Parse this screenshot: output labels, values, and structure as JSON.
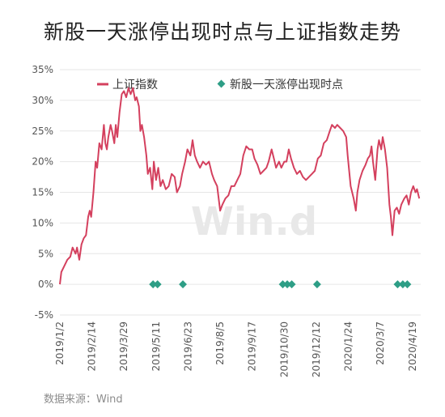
{
  "title": "新股一天涨停出现时点与上证指数走势",
  "source": "数据来源：Wind",
  "watermark": "Win.d",
  "colors": {
    "line": "#d4405e",
    "marker": "#2e9e86",
    "grid": "#e6e6e6"
  },
  "chart_data": {
    "type": "line",
    "ylim": [
      -5,
      35
    ],
    "yticks": [
      -5,
      0,
      5,
      10,
      15,
      20,
      25,
      30,
      35
    ],
    "ytick_labels": [
      "-5%",
      "0%",
      "5%",
      "10%",
      "15%",
      "20%",
      "25%",
      "30%",
      "35%"
    ],
    "xlim": [
      "2019-01-02",
      "2020-04-30"
    ],
    "xtick_dates": [
      "2019-01-02",
      "2019-02-14",
      "2019-03-29",
      "2019-05-11",
      "2019-06-23",
      "2019-08-05",
      "2019-09-17",
      "2019-10-30",
      "2019-12-12",
      "2020-01-24",
      "2020-03-07",
      "2020-04-19"
    ],
    "xtick_labels": [
      "2019/1/2",
      "2019/2/14",
      "2019/3/29",
      "2019/5/11",
      "2019/6/23",
      "2019/8/5",
      "2019/9/17",
      "2019/10/30",
      "2019/12/12",
      "2020/1/24",
      "2020/3/7",
      "2020/4/19"
    ],
    "legend_position": "top",
    "series": [
      {
        "name": "上证指数",
        "kind": "line",
        "points": [
          [
            "2019-01-02",
            0
          ],
          [
            "2019-01-04",
            2
          ],
          [
            "2019-01-08",
            3
          ],
          [
            "2019-01-12",
            4
          ],
          [
            "2019-01-16",
            4.5
          ],
          [
            "2019-01-19",
            6
          ],
          [
            "2019-01-23",
            5
          ],
          [
            "2019-01-25",
            6
          ],
          [
            "2019-01-28",
            4
          ],
          [
            "2019-01-31",
            6.5
          ],
          [
            "2019-02-03",
            7.5
          ],
          [
            "2019-02-06",
            8
          ],
          [
            "2019-02-09",
            11
          ],
          [
            "2019-02-11",
            12
          ],
          [
            "2019-02-13",
            11
          ],
          [
            "2019-02-16",
            15
          ],
          [
            "2019-02-19",
            20
          ],
          [
            "2019-02-21",
            19
          ],
          [
            "2019-02-24",
            23
          ],
          [
            "2019-02-27",
            22
          ],
          [
            "2019-03-02",
            26
          ],
          [
            "2019-03-04",
            23
          ],
          [
            "2019-03-06",
            22
          ],
          [
            "2019-03-08",
            24
          ],
          [
            "2019-03-11",
            26
          ],
          [
            "2019-03-13",
            25
          ],
          [
            "2019-03-16",
            23
          ],
          [
            "2019-03-18",
            26
          ],
          [
            "2019-03-20",
            24
          ],
          [
            "2019-03-23",
            28
          ],
          [
            "2019-03-26",
            31
          ],
          [
            "2019-03-29",
            31.5
          ],
          [
            "2019-04-01",
            30.5
          ],
          [
            "2019-04-04",
            32
          ],
          [
            "2019-04-07",
            31
          ],
          [
            "2019-04-10",
            32
          ],
          [
            "2019-04-13",
            30
          ],
          [
            "2019-04-15",
            30.5
          ],
          [
            "2019-04-18",
            29
          ],
          [
            "2019-04-20",
            25
          ],
          [
            "2019-04-22",
            26
          ],
          [
            "2019-04-25",
            24
          ],
          [
            "2019-04-28",
            21
          ],
          [
            "2019-04-30",
            18
          ],
          [
            "2019-05-03",
            19
          ],
          [
            "2019-05-06",
            15.5
          ],
          [
            "2019-05-08",
            20
          ],
          [
            "2019-05-11",
            17
          ],
          [
            "2019-05-14",
            19
          ],
          [
            "2019-05-17",
            16
          ],
          [
            "2019-05-20",
            17
          ],
          [
            "2019-05-24",
            15.5
          ],
          [
            "2019-05-28",
            16
          ],
          [
            "2019-06-01",
            18
          ],
          [
            "2019-06-05",
            17.5
          ],
          [
            "2019-06-08",
            15
          ],
          [
            "2019-06-12",
            16
          ],
          [
            "2019-06-15",
            18
          ],
          [
            "2019-06-19",
            20
          ],
          [
            "2019-06-22",
            22
          ],
          [
            "2019-06-26",
            21
          ],
          [
            "2019-06-29",
            23.5
          ],
          [
            "2019-07-02",
            21
          ],
          [
            "2019-07-05",
            20
          ],
          [
            "2019-07-09",
            19
          ],
          [
            "2019-07-13",
            20
          ],
          [
            "2019-07-17",
            19.5
          ],
          [
            "2019-07-21",
            20
          ],
          [
            "2019-07-25",
            18
          ],
          [
            "2019-07-28",
            17
          ],
          [
            "2019-08-01",
            16
          ],
          [
            "2019-08-05",
            12
          ],
          [
            "2019-08-08",
            13
          ],
          [
            "2019-08-12",
            14
          ],
          [
            "2019-08-16",
            14.5
          ],
          [
            "2019-08-20",
            16
          ],
          [
            "2019-08-24",
            16
          ],
          [
            "2019-08-28",
            17
          ],
          [
            "2019-09-01",
            18
          ],
          [
            "2019-09-05",
            21
          ],
          [
            "2019-09-09",
            22.5
          ],
          [
            "2019-09-13",
            22
          ],
          [
            "2019-09-17",
            22
          ],
          [
            "2019-09-20",
            20.5
          ],
          [
            "2019-09-24",
            19.5
          ],
          [
            "2019-09-28",
            18
          ],
          [
            "2019-10-02",
            18.5
          ],
          [
            "2019-10-06",
            19
          ],
          [
            "2019-10-09",
            20
          ],
          [
            "2019-10-13",
            22
          ],
          [
            "2019-10-16",
            20.5
          ],
          [
            "2019-10-19",
            19
          ],
          [
            "2019-10-23",
            20
          ],
          [
            "2019-10-26",
            19
          ],
          [
            "2019-10-30",
            20
          ],
          [
            "2019-11-02",
            20
          ],
          [
            "2019-11-05",
            22
          ],
          [
            "2019-11-08",
            20.5
          ],
          [
            "2019-11-12",
            19
          ],
          [
            "2019-11-16",
            18
          ],
          [
            "2019-11-20",
            18.5
          ],
          [
            "2019-11-24",
            17.5
          ],
          [
            "2019-11-28",
            17
          ],
          [
            "2019-12-02",
            17.5
          ],
          [
            "2019-12-06",
            18
          ],
          [
            "2019-12-10",
            18.5
          ],
          [
            "2019-12-14",
            20.5
          ],
          [
            "2019-12-18",
            21
          ],
          [
            "2019-12-22",
            23
          ],
          [
            "2019-12-26",
            23.5
          ],
          [
            "2019-12-30",
            25
          ],
          [
            "2020-01-02",
            26
          ],
          [
            "2020-01-06",
            25.5
          ],
          [
            "2020-01-09",
            26
          ],
          [
            "2020-01-13",
            25.5
          ],
          [
            "2020-01-17",
            25
          ],
          [
            "2020-01-21",
            24
          ],
          [
            "2020-01-23",
            21
          ],
          [
            "2020-01-27",
            16
          ],
          [
            "2020-01-31",
            14
          ],
          [
            "2020-02-03",
            12
          ],
          [
            "2020-02-05",
            15
          ],
          [
            "2020-02-08",
            17
          ],
          [
            "2020-02-12",
            18.5
          ],
          [
            "2020-02-16",
            19.5
          ],
          [
            "2020-02-19",
            20.5
          ],
          [
            "2020-02-22",
            21
          ],
          [
            "2020-02-24",
            22.5
          ],
          [
            "2020-02-26",
            20
          ],
          [
            "2020-02-29",
            17
          ],
          [
            "2020-03-03",
            22
          ],
          [
            "2020-03-05",
            23.5
          ],
          [
            "2020-03-08",
            22
          ],
          [
            "2020-03-10",
            24
          ],
          [
            "2020-03-13",
            22
          ],
          [
            "2020-03-16",
            19
          ],
          [
            "2020-03-19",
            13
          ],
          [
            "2020-03-21",
            11
          ],
          [
            "2020-03-23",
            8
          ],
          [
            "2020-03-26",
            12
          ],
          [
            "2020-03-29",
            12.5
          ],
          [
            "2020-04-01",
            11.5
          ],
          [
            "2020-04-04",
            13
          ],
          [
            "2020-04-08",
            14
          ],
          [
            "2020-04-11",
            14.5
          ],
          [
            "2020-04-14",
            13
          ],
          [
            "2020-04-17",
            15
          ],
          [
            "2020-04-20",
            16
          ],
          [
            "2020-04-23",
            15
          ],
          [
            "2020-04-25",
            15.5
          ],
          [
            "2020-04-28",
            14
          ]
        ]
      },
      {
        "name": "新股一天涨停出现时点",
        "kind": "scatter",
        "points": [
          [
            "2019-05-07",
            0
          ],
          [
            "2019-05-13",
            0
          ],
          [
            "2019-06-16",
            0
          ],
          [
            "2019-10-28",
            0
          ],
          [
            "2019-11-03",
            0
          ],
          [
            "2019-11-09",
            0
          ],
          [
            "2019-12-13",
            0
          ],
          [
            "2020-03-30",
            0
          ],
          [
            "2020-04-06",
            0
          ],
          [
            "2020-04-12",
            0
          ]
        ]
      }
    ]
  }
}
